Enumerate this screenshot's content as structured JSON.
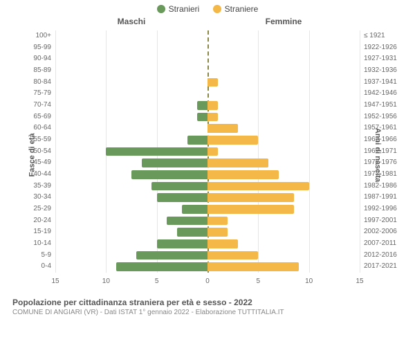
{
  "legend": {
    "male": {
      "label": "Stranieri",
      "color": "#6a9a5b"
    },
    "female": {
      "label": "Straniere",
      "color": "#f3b847"
    }
  },
  "headers": {
    "male": "Maschi",
    "female": "Femmine"
  },
  "axis_titles": {
    "left": "Fasce di età",
    "right": "Anni di nascita"
  },
  "chart": {
    "type": "population-pyramid",
    "xlim": 15,
    "xticks": [
      15,
      10,
      5,
      0,
      5,
      10,
      15
    ],
    "background_color": "#ffffff",
    "grid_color": "#e5e5e5",
    "center_line_color": "#888844",
    "bar_color_male": "#6a9a5b",
    "bar_color_female": "#f3b847",
    "label_fontsize": 10,
    "rows": [
      {
        "age": "100+",
        "birth": "≤ 1921",
        "m": 0,
        "f": 0
      },
      {
        "age": "95-99",
        "birth": "1922-1926",
        "m": 0,
        "f": 0
      },
      {
        "age": "90-94",
        "birth": "1927-1931",
        "m": 0,
        "f": 0
      },
      {
        "age": "85-89",
        "birth": "1932-1936",
        "m": 0,
        "f": 0
      },
      {
        "age": "80-84",
        "birth": "1937-1941",
        "m": 0,
        "f": 1
      },
      {
        "age": "75-79",
        "birth": "1942-1946",
        "m": 0,
        "f": 0
      },
      {
        "age": "70-74",
        "birth": "1947-1951",
        "m": 1,
        "f": 1
      },
      {
        "age": "65-69",
        "birth": "1952-1956",
        "m": 1,
        "f": 1
      },
      {
        "age": "60-64",
        "birth": "1957-1961",
        "m": 0,
        "f": 3
      },
      {
        "age": "55-59",
        "birth": "1962-1966",
        "m": 2,
        "f": 5
      },
      {
        "age": "50-54",
        "birth": "1967-1971",
        "m": 10,
        "f": 1
      },
      {
        "age": "45-49",
        "birth": "1972-1976",
        "m": 6.5,
        "f": 6
      },
      {
        "age": "40-44",
        "birth": "1977-1981",
        "m": 7.5,
        "f": 7
      },
      {
        "age": "35-39",
        "birth": "1982-1986",
        "m": 5.5,
        "f": 10
      },
      {
        "age": "30-34",
        "birth": "1987-1991",
        "m": 5,
        "f": 8.5
      },
      {
        "age": "25-29",
        "birth": "1992-1996",
        "m": 2.5,
        "f": 8.5
      },
      {
        "age": "20-24",
        "birth": "1997-2001",
        "m": 4,
        "f": 2
      },
      {
        "age": "15-19",
        "birth": "2002-2006",
        "m": 3,
        "f": 2
      },
      {
        "age": "10-14",
        "birth": "2007-2011",
        "m": 5,
        "f": 3
      },
      {
        "age": "5-9",
        "birth": "2012-2016",
        "m": 7,
        "f": 5
      },
      {
        "age": "0-4",
        "birth": "2017-2021",
        "m": 9,
        "f": 9
      }
    ]
  },
  "caption": {
    "title": "Popolazione per cittadinanza straniera per età e sesso - 2022",
    "subtitle": "COMUNE DI ANGIARI (VR) - Dati ISTAT 1° gennaio 2022 - Elaborazione TUTTITALIA.IT"
  }
}
